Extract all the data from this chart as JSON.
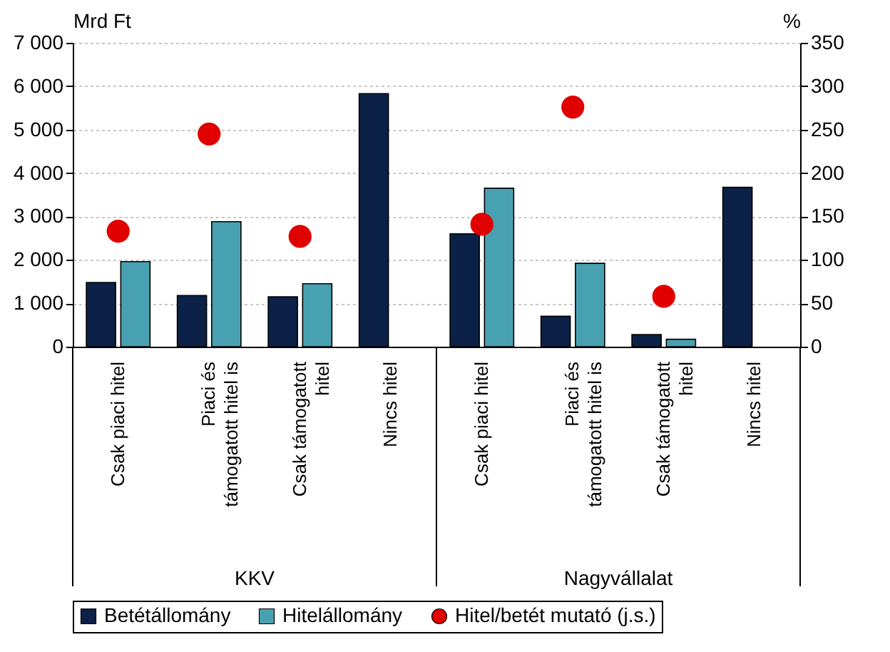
{
  "chart_data": {
    "type": "bar",
    "categories": [
      "Csak piaci hitel",
      "Piaci és\ntámogatott hitel is",
      "Csak támogatott\nhitel",
      "Nincs hitel",
      "Csak piaci hitel",
      "Piaci és\ntámogatott hitel is",
      "Csak támogatott\nhitel",
      "Nincs hitel"
    ],
    "series": [
      {
        "name": "Betétállomány",
        "color": "#0c2147",
        "values": [
          1480,
          1180,
          1150,
          5830,
          2600,
          700,
          280,
          3670
        ]
      },
      {
        "name": "Hitelállomány",
        "color": "#48a1b0",
        "values": [
          1960,
          2880,
          1450,
          null,
          3650,
          1920,
          170,
          null
        ]
      },
      {
        "name": "Hitel/betét mutató (j.s.)",
        "type": "scatter",
        "axis": "y2",
        "color": "#e00000",
        "values": [
          133,
          245,
          127,
          null,
          141,
          276,
          58,
          null
        ]
      }
    ],
    "ylabel": "Mrd Ft",
    "y2label": "%",
    "ylim": [
      0,
      7000
    ],
    "yticks": [
      0,
      {
        "value": 1000,
        "label": "1 000"
      },
      {
        "value": 2000,
        "label": "2 000"
      },
      {
        "value": 3000,
        "label": "3 000"
      },
      {
        "value": 4000,
        "label": "4 000"
      },
      {
        "value": 5000,
        "label": "5 000"
      },
      {
        "value": 6000,
        "label": "6 000"
      },
      {
        "value": 7000,
        "label": "7 000"
      }
    ],
    "y2lim": [
      0,
      350
    ],
    "y2ticks": [
      0,
      50,
      100,
      150,
      200,
      250,
      300,
      350
    ],
    "annotations": [
      "KKV",
      "Nagyvállalat"
    ],
    "grid": "y",
    "legend": "bottom",
    "marker": "circle"
  }
}
